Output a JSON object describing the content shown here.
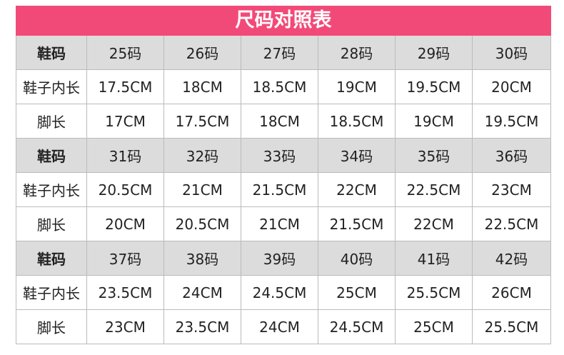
{
  "table": {
    "title": "尺码对照表",
    "rows": [
      [
        "鞋码",
        "25码",
        "26码",
        "27码",
        "28码",
        "29码",
        "30码"
      ],
      [
        "鞋子内长",
        "17.5CM",
        "18CM",
        "18.5CM",
        "19CM",
        "19.5CM",
        "20CM"
      ],
      [
        "脚长",
        "17CM",
        "17.5CM",
        "18CM",
        "18.5CM",
        "19CM",
        "19.5CM"
      ],
      [
        "鞋码",
        "31码",
        "32码",
        "33码",
        "34码",
        "35码",
        "36码"
      ],
      [
        "鞋子内长",
        "20.5CM",
        "21CM",
        "21.5CM",
        "22CM",
        "22.5CM",
        "23CM"
      ],
      [
        "脚长",
        "20CM",
        "20.5CM",
        "21CM",
        "21.5CM",
        "22CM",
        "22.5CM"
      ],
      [
        "鞋码",
        "37码",
        "38码",
        "39码",
        "40码",
        "41码",
        "42码"
      ],
      [
        "鞋子内长",
        "23.5CM",
        "24CM",
        "24.5CM",
        "25CM",
        "25.5CM",
        "26CM"
      ],
      [
        "脚长",
        "23CM",
        "23.5CM",
        "24CM",
        "24.5CM",
        "25CM",
        "25.5CM"
      ]
    ]
  }
}
